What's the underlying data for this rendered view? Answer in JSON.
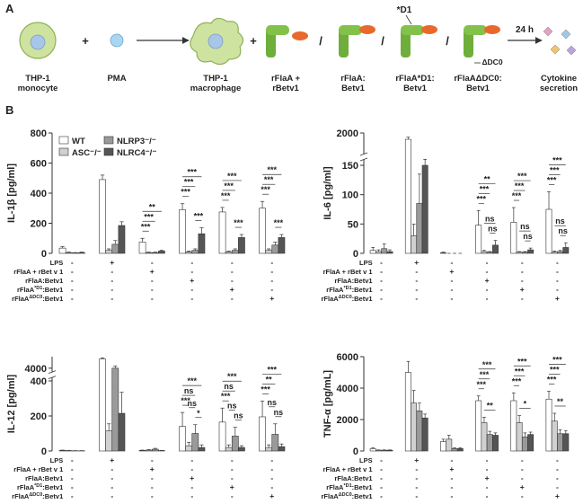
{
  "panel_labels": [
    "A",
    "B"
  ],
  "diagram": {
    "items": [
      {
        "lines": [
          "THP-1",
          "monocyte"
        ]
      },
      {
        "lines": [
          "PMA"
        ]
      },
      {
        "lines": [
          "THP-1",
          "macrophage"
        ]
      },
      {
        "lines": [
          "rFlaA +",
          "rBetv1"
        ]
      },
      {
        "lines": [
          "rFlaA:",
          "Betv1"
        ]
      },
      {
        "lines": [
          "rFlaA*D1:",
          "Betv1"
        ]
      },
      {
        "lines": [
          "rFlaAΔDC0:",
          "Betv1"
        ]
      },
      {
        "lines": [
          "Cytokine",
          "secretion"
        ]
      }
    ],
    "operators": [
      "+",
      "+",
      "/",
      "/",
      "/"
    ],
    "mutation_labels": [
      "*D1",
      "ΔDC0"
    ],
    "arrow_label": "24 h"
  },
  "chart_data": [
    {
      "type": "bar",
      "y_label": "IL-1β [pg/ml]",
      "ylim": [
        0,
        800
      ],
      "yticks": [
        0,
        200,
        400,
        600,
        800
      ],
      "legend": "top-left",
      "series": [
        {
          "name": "WT",
          "color": "#ffffff",
          "values": [
            35,
            490,
            75,
            290,
            275,
            300
          ],
          "errors": [
            10,
            30,
            25,
            40,
            30,
            45
          ]
        },
        {
          "name": "ASC⁻/⁻",
          "color": "#d0d0d0",
          "values": [
            5,
            20,
            5,
            10,
            10,
            20
          ],
          "errors": [
            3,
            10,
            3,
            5,
            5,
            10
          ]
        },
        {
          "name": "NLRP3⁻/⁻",
          "color": "#9a9a9a",
          "values": [
            3,
            60,
            5,
            20,
            20,
            55
          ],
          "errors": [
            2,
            25,
            3,
            10,
            10,
            20
          ]
        },
        {
          "name": "NLRC4⁻/⁻",
          "color": "#555555",
          "values": [
            5,
            185,
            15,
            130,
            105,
            105
          ],
          "errors": [
            3,
            25,
            5,
            40,
            20,
            20
          ]
        }
      ],
      "significance": [
        {
          "group": 2,
          "pair": [
            0,
            1
          ],
          "label": "***"
        },
        {
          "group": 2,
          "pair": [
            0,
            2
          ],
          "label": "***"
        },
        {
          "group": 2,
          "pair": [
            0,
            3
          ],
          "label": "**"
        },
        {
          "group": 3,
          "pair": [
            0,
            1
          ],
          "label": "***"
        },
        {
          "group": 3,
          "pair": [
            0,
            2
          ],
          "label": "***"
        },
        {
          "group": 3,
          "pair": [
            0,
            3
          ],
          "label": "***"
        },
        {
          "group": 3,
          "pair": [
            2,
            3
          ],
          "label": "***"
        },
        {
          "group": 4,
          "pair": [
            0,
            1
          ],
          "label": "***"
        },
        {
          "group": 4,
          "pair": [
            0,
            2
          ],
          "label": "***"
        },
        {
          "group": 4,
          "pair": [
            0,
            3
          ],
          "label": "***"
        },
        {
          "group": 4,
          "pair": [
            2,
            3
          ],
          "label": "***"
        },
        {
          "group": 5,
          "pair": [
            0,
            1
          ],
          "label": "***"
        },
        {
          "group": 5,
          "pair": [
            0,
            2
          ],
          "label": "***"
        },
        {
          "group": 5,
          "pair": [
            0,
            3
          ],
          "label": "***"
        },
        {
          "group": 5,
          "pair": [
            2,
            3
          ],
          "label": "***"
        }
      ],
      "table": {
        "rows": [
          {
            "text": "LPS"
          },
          {
            "text": "rFlaA + rBet v 1"
          },
          {
            "text": "rFlaA:Betv1"
          },
          {
            "text": "rFlaA",
            "sup": "*D1",
            "tail": ":Betv1"
          },
          {
            "text": "rFlaA",
            "sup": "ΔDC0",
            "tail": ":Betv1"
          }
        ],
        "signs": [
          [
            "-",
            "+",
            "-",
            "-",
            "-",
            "-"
          ],
          [
            "-",
            "-",
            "+",
            "-",
            "-",
            "-"
          ],
          [
            "-",
            "-",
            "-",
            "+",
            "-",
            "-"
          ],
          [
            "-",
            "-",
            "-",
            "-",
            "+",
            "-"
          ],
          [
            "-",
            "-",
            "-",
            "-",
            "-",
            "+"
          ]
        ]
      }
    },
    {
      "type": "bar",
      "y_label": "IL-6 [pg/ml]",
      "ylim": [
        0,
        2000
      ],
      "axis_break": [
        160,
        1500
      ],
      "yticks": [
        0,
        50,
        100,
        150,
        2000
      ],
      "series": [
        {
          "color": "#ffffff",
          "values": [
            5,
            1850,
            1,
            48,
            53,
            75
          ],
          "errors": [
            5,
            50,
            1,
            25,
            25,
            30
          ]
        },
        {
          "color": "#d0d0d0",
          "values": [
            3,
            30,
            0,
            3,
            2,
            2
          ],
          "errors": [
            3,
            20,
            0,
            2,
            1,
            2
          ]
        },
        {
          "color": "#9a9a9a",
          "values": [
            8,
            85,
            0,
            2,
            2,
            3
          ],
          "errors": [
            8,
            50,
            0,
            1,
            1,
            2
          ]
        },
        {
          "color": "#555555",
          "values": [
            3,
            150,
            0,
            14,
            6,
            10
          ],
          "errors": [
            3,
            40,
            0,
            8,
            3,
            8
          ]
        }
      ],
      "significance": [
        {
          "group": 3,
          "pair": [
            0,
            1
          ],
          "label": "***"
        },
        {
          "group": 3,
          "pair": [
            0,
            2
          ],
          "label": "***"
        },
        {
          "group": 3,
          "pair": [
            0,
            3
          ],
          "label": "**"
        },
        {
          "group": 3,
          "pair": [
            2,
            3
          ],
          "label": "ns"
        },
        {
          "group": 3,
          "pair": [
            1,
            3
          ],
          "label": "ns"
        },
        {
          "group": 4,
          "pair": [
            0,
            1
          ],
          "label": "***"
        },
        {
          "group": 4,
          "pair": [
            0,
            2
          ],
          "label": "***"
        },
        {
          "group": 4,
          "pair": [
            0,
            3
          ],
          "label": "***"
        },
        {
          "group": 4,
          "pair": [
            2,
            3
          ],
          "label": "ns"
        },
        {
          "group": 4,
          "pair": [
            1,
            3
          ],
          "label": "ns"
        },
        {
          "group": 5,
          "pair": [
            0,
            1
          ],
          "label": "***"
        },
        {
          "group": 5,
          "pair": [
            0,
            2
          ],
          "label": "***"
        },
        {
          "group": 5,
          "pair": [
            0,
            3
          ],
          "label": "***"
        },
        {
          "group": 5,
          "pair": [
            2,
            3
          ],
          "label": "ns"
        },
        {
          "group": 5,
          "pair": [
            1,
            3
          ],
          "label": "ns"
        }
      ],
      "table": {
        "rows": [
          {
            "text": "LPS"
          },
          {
            "text": "rFlaA + rBet v 1"
          },
          {
            "text": "rFlaA:Betv1"
          },
          {
            "text": "rFlaA",
            "sup": "*D1",
            "tail": ":Betv1"
          },
          {
            "text": "rFlaA",
            "sup": "ΔDC0",
            "tail": ":Betv1"
          }
        ],
        "signs": [
          [
            "-",
            "+",
            "-",
            "-",
            "-",
            "-"
          ],
          [
            "-",
            "-",
            "+",
            "-",
            "-",
            "-"
          ],
          [
            "-",
            "-",
            "-",
            "+",
            "-",
            "-"
          ],
          [
            "-",
            "-",
            "-",
            "-",
            "+",
            "-"
          ],
          [
            "-",
            "-",
            "-",
            "-",
            "-",
            "+"
          ]
        ]
      }
    },
    {
      "type": "bar",
      "y_label": "IL-12 [pg/ml]",
      "ylim": [
        0,
        5500
      ],
      "axis_break": [
        420,
        3500
      ],
      "yticks": [
        0,
        200,
        400,
        4000
      ],
      "series": [
        {
          "color": "#ffffff",
          "values": [
            3,
            5200,
            3,
            140,
            165,
            195
          ],
          "errors": [
            2,
            150,
            2,
            80,
            80,
            90
          ]
        },
        {
          "color": "#d0d0d0",
          "values": [
            2,
            115,
            5,
            30,
            20,
            20
          ],
          "errors": [
            1,
            40,
            3,
            20,
            15,
            15
          ]
        },
        {
          "color": "#9a9a9a",
          "values": [
            1,
            4000,
            10,
            100,
            85,
            95
          ],
          "errors": [
            1,
            300,
            5,
            50,
            50,
            60
          ]
        },
        {
          "color": "#555555",
          "values": [
            1,
            215,
            2,
            20,
            20,
            25
          ],
          "errors": [
            1,
            120,
            1,
            15,
            10,
            15
          ]
        }
      ],
      "significance": [
        {
          "group": 3,
          "pair": [
            0,
            1
          ],
          "label": "***"
        },
        {
          "group": 3,
          "pair": [
            0,
            2
          ],
          "label": "ns"
        },
        {
          "group": 3,
          "pair": [
            0,
            3
          ],
          "label": "***"
        },
        {
          "group": 3,
          "pair": [
            2,
            3
          ],
          "label": "*"
        },
        {
          "group": 3,
          "pair": [
            1,
            2
          ],
          "label": "ns"
        },
        {
          "group": 4,
          "pair": [
            0,
            1
          ],
          "label": "***"
        },
        {
          "group": 4,
          "pair": [
            0,
            2
          ],
          "label": "ns"
        },
        {
          "group": 4,
          "pair": [
            0,
            3
          ],
          "label": "***"
        },
        {
          "group": 4,
          "pair": [
            2,
            3
          ],
          "label": "ns"
        },
        {
          "group": 4,
          "pair": [
            1,
            2
          ],
          "label": "ns"
        },
        {
          "group": 5,
          "pair": [
            0,
            1
          ],
          "label": "***"
        },
        {
          "group": 5,
          "pair": [
            0,
            2
          ],
          "label": "**"
        },
        {
          "group": 5,
          "pair": [
            0,
            3
          ],
          "label": "***"
        },
        {
          "group": 5,
          "pair": [
            2,
            3
          ],
          "label": "ns"
        },
        {
          "group": 5,
          "pair": [
            1,
            2
          ],
          "label": "ns"
        }
      ],
      "table": {
        "rows": [
          {
            "text": "LPS"
          },
          {
            "text": "rFlaA + rBet v 1"
          },
          {
            "text": "rFlaA:Betv1"
          },
          {
            "text": "rFlaA",
            "sup": "*D1",
            "tail": ":Betv1"
          },
          {
            "text": "rFlaA",
            "sup": "ΔDC0",
            "tail": ":Betv1"
          }
        ],
        "signs": [
          [
            "-",
            "+",
            "-",
            "-",
            "-",
            "-"
          ],
          [
            "-",
            "-",
            "+",
            "-",
            "-",
            "-"
          ],
          [
            "-",
            "-",
            "-",
            "+",
            "-",
            "-"
          ],
          [
            "-",
            "-",
            "-",
            "-",
            "+",
            "-"
          ],
          [
            "-",
            "-",
            "-",
            "-",
            "-",
            "+"
          ]
        ]
      }
    },
    {
      "type": "bar",
      "y_label": "TNF-α [pg/mL]",
      "ylim": [
        0,
        6000
      ],
      "yticks": [
        0,
        2000,
        4000,
        6000
      ],
      "series": [
        {
          "color": "#ffffff",
          "values": [
            150,
            5000,
            600,
            3200,
            3200,
            3300
          ],
          "errors": [
            50,
            700,
            150,
            300,
            500,
            500
          ]
        },
        {
          "color": "#d0d0d0",
          "values": [
            50,
            3050,
            750,
            1800,
            1800,
            1900
          ],
          "errors": [
            20,
            800,
            250,
            350,
            450,
            500
          ]
        },
        {
          "color": "#9a9a9a",
          "values": [
            50,
            2550,
            150,
            1050,
            900,
            1100
          ],
          "errors": [
            20,
            500,
            50,
            200,
            250,
            250
          ]
        },
        {
          "color": "#555555",
          "values": [
            50,
            2100,
            150,
            1000,
            1050,
            1100
          ],
          "errors": [
            20,
            250,
            50,
            150,
            150,
            200
          ]
        }
      ],
      "significance": [
        {
          "group": 3,
          "pair": [
            0,
            1
          ],
          "label": "***"
        },
        {
          "group": 3,
          "pair": [
            0,
            2
          ],
          "label": "***"
        },
        {
          "group": 3,
          "pair": [
            0,
            3
          ],
          "label": "***"
        },
        {
          "group": 3,
          "pair": [
            1,
            3
          ],
          "label": "**"
        },
        {
          "group": 4,
          "pair": [
            0,
            1
          ],
          "label": "***"
        },
        {
          "group": 4,
          "pair": [
            0,
            2
          ],
          "label": "***"
        },
        {
          "group": 4,
          "pair": [
            0,
            3
          ],
          "label": "***"
        },
        {
          "group": 4,
          "pair": [
            1,
            3
          ],
          "label": "*"
        },
        {
          "group": 5,
          "pair": [
            0,
            1
          ],
          "label": "***"
        },
        {
          "group": 5,
          "pair": [
            0,
            2
          ],
          "label": "***"
        },
        {
          "group": 5,
          "pair": [
            0,
            3
          ],
          "label": "***"
        },
        {
          "group": 5,
          "pair": [
            1,
            3
          ],
          "label": "**"
        }
      ],
      "table": {
        "rows": [
          {
            "text": "LPS"
          },
          {
            "text": "rFlaA + rBet v 1"
          },
          {
            "text": "rFlaA:Betv1"
          },
          {
            "text": "rFlaA",
            "sup": "*D1",
            "tail": ":Betv1"
          },
          {
            "text": "rFlaA",
            "sup": "ΔDC0",
            "tail": ":Betv1"
          }
        ],
        "signs": [
          [
            "-",
            "+",
            "-",
            "-",
            "-",
            "-"
          ],
          [
            "-",
            "-",
            "+",
            "-",
            "-",
            "-"
          ],
          [
            "-",
            "-",
            "-",
            "+",
            "-",
            "-"
          ],
          [
            "-",
            "-",
            "-",
            "-",
            "+",
            "-"
          ],
          [
            "-",
            "-",
            "-",
            "-",
            "-",
            "+"
          ]
        ]
      }
    }
  ]
}
